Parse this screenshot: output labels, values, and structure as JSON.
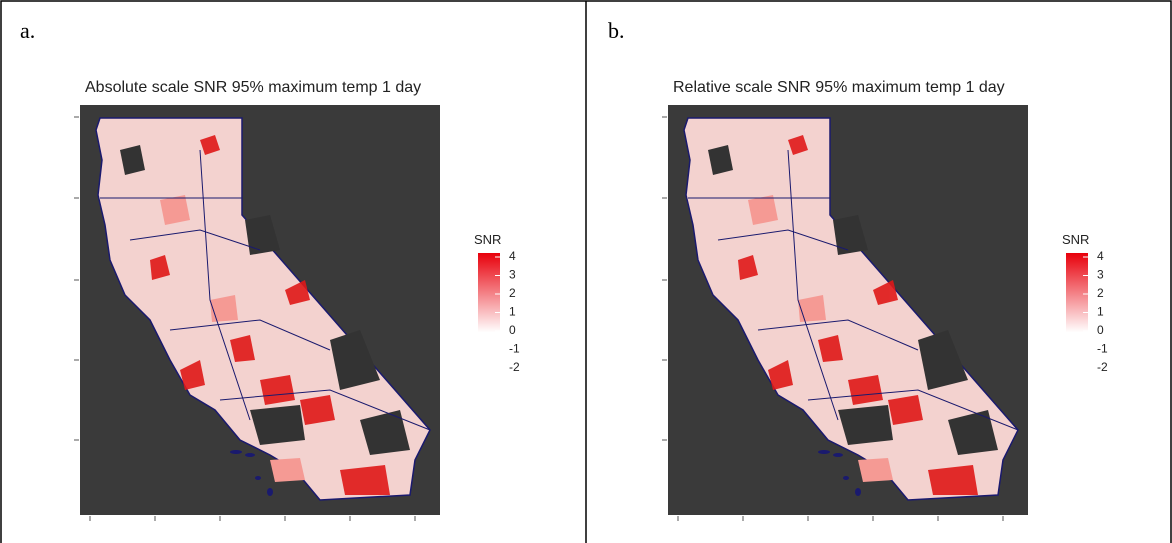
{
  "panels": [
    {
      "label": "a.",
      "title": "Absolute scale SNR 95% maximum temp 1 day",
      "legend": {
        "title": "SNR",
        "ticks": [
          4,
          3,
          2,
          1,
          0,
          -1,
          -2
        ]
      }
    },
    {
      "label": "b.",
      "title": "Relative scale SNR 95% maximum temp 1 day",
      "legend": {
        "title": "SNR",
        "ticks": [
          4,
          3,
          2,
          1,
          0,
          -1,
          -2
        ]
      }
    }
  ]
}
